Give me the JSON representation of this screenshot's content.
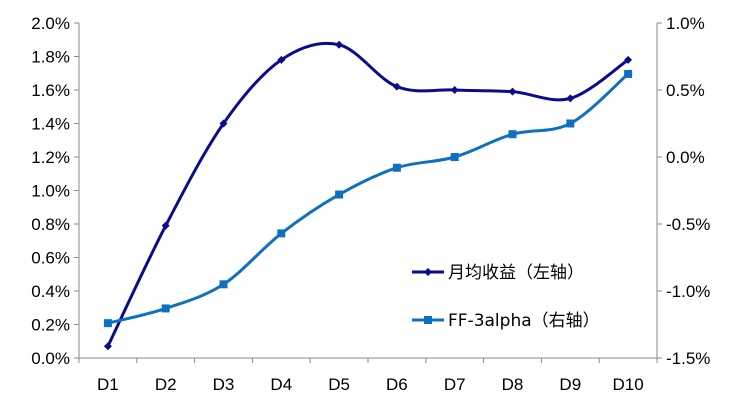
{
  "chart_data": {
    "type": "line",
    "title": "",
    "xlabel": "",
    "categories": [
      "D1",
      "D2",
      "D3",
      "D4",
      "D5",
      "D6",
      "D7",
      "D8",
      "D9",
      "D10"
    ],
    "left_axis": {
      "ylim": [
        0.0,
        2.0
      ],
      "ticks": [
        0.0,
        0.2,
        0.4,
        0.6,
        0.8,
        1.0,
        1.2,
        1.4,
        1.6,
        1.8,
        2.0
      ],
      "tick_labels": [
        "0.0%",
        "0.2%",
        "0.4%",
        "0.6%",
        "0.8%",
        "1.0%",
        "1.2%",
        "1.4%",
        "1.6%",
        "1.8%",
        "2.0%"
      ]
    },
    "right_axis": {
      "ylim": [
        -1.5,
        1.0
      ],
      "ticks": [
        -1.5,
        -1.0,
        -0.5,
        0.0,
        0.5,
        1.0
      ],
      "tick_labels": [
        "-1.5%",
        "-1.0%",
        "-0.5%",
        "0.0%",
        "0.5%",
        "1.0%"
      ]
    },
    "series": [
      {
        "name": "月均收益（左轴）",
        "axis": "left",
        "color": "#0B0B8C",
        "marker": "diamond",
        "values": [
          0.07,
          0.79,
          1.4,
          1.78,
          1.87,
          1.62,
          1.6,
          1.59,
          1.55,
          1.78
        ]
      },
      {
        "name": "FF-3alpha（右轴）",
        "axis": "right",
        "color": "#1070C0",
        "marker": "square",
        "values": [
          -1.24,
          -1.13,
          -0.95,
          -0.57,
          -0.28,
          -0.08,
          0.0,
          0.17,
          0.25,
          0.62
        ]
      }
    ],
    "legend_position": "bottom-right",
    "grid": false
  }
}
